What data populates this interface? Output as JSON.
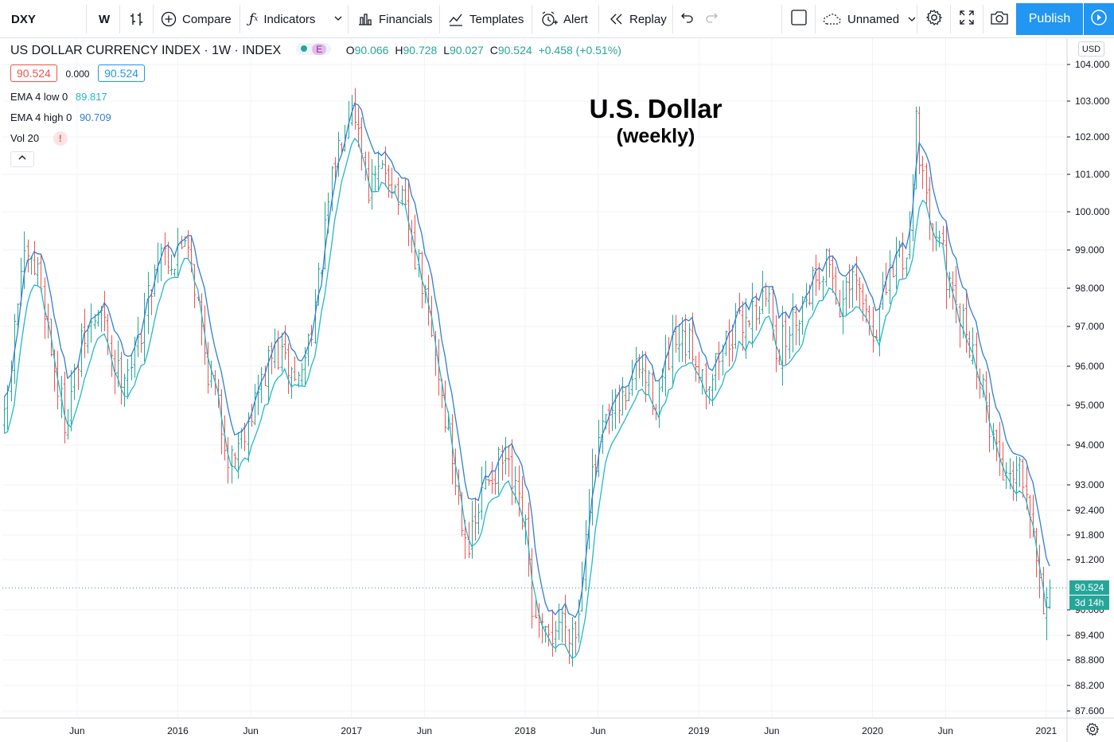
{
  "toolbar": {
    "symbol": "DXY",
    "interval": "W",
    "compare_label": "Compare",
    "indicators_label": "Indicators",
    "financials_label": "Financials",
    "templates_label": "Templates",
    "alert_label": "Alert",
    "replay_label": "Replay",
    "layout_name": "Unnamed",
    "publish_label": "Publish"
  },
  "legend": {
    "title": "US DOLLAR CURRENCY INDEX · 1W · INDEX",
    "badge": "E",
    "o_label": "O",
    "o_value": "90.066",
    "h_label": "H",
    "h_value": "90.728",
    "l_label": "L",
    "l_value": "90.027",
    "c_label": "C",
    "c_value": "90.524",
    "change": "+0.458 (+0.51%)",
    "bid": "90.524",
    "spread": "0.000",
    "ask": "90.524",
    "ema_low_label": "EMA 4 low 0",
    "ema_low_value": "89.817",
    "ema_high_label": "EMA 4 high 0",
    "ema_high_value": "90.709",
    "vol_label": "Vol 20",
    "vol_warning": "!"
  },
  "annotation": {
    "title": "U.S. Dollar",
    "subtitle": "(weekly)"
  },
  "price_axis": {
    "currency": "USD",
    "last_price": "90.524",
    "countdown": "3d 14h"
  },
  "colors": {
    "up": "#26a69a",
    "down": "#ef5350",
    "ema_high": "#2f7fd6",
    "ema_low": "#22b8c8",
    "accent": "#2196f3",
    "last_price": "#26a69a"
  },
  "chart_data": {
    "type": "bar",
    "ylim": [
      87.6,
      104.0
    ],
    "y_ticks": [
      "104.000",
      "103.000",
      "102.000",
      "101.000",
      "100.000",
      "99.000",
      "98.000",
      "97.000",
      "96.000",
      "95.000",
      "94.000",
      "93.000",
      "92.400",
      "91.800",
      "91.200",
      "90.000",
      "89.400",
      "88.800",
      "88.200",
      "87.600"
    ],
    "x_ticks": [
      {
        "label": "Jun",
        "date": 2015.42
      },
      {
        "label": "2016",
        "date": 2016.0
      },
      {
        "label": "Jun",
        "date": 2016.42
      },
      {
        "label": "2017",
        "date": 2017.0
      },
      {
        "label": "Jun",
        "date": 2017.42
      },
      {
        "label": "2018",
        "date": 2018.0
      },
      {
        "label": "Jun",
        "date": 2018.42
      },
      {
        "label": "2019",
        "date": 2019.0
      },
      {
        "label": "Jun",
        "date": 2019.42
      },
      {
        "label": "2020",
        "date": 2020.0
      },
      {
        "label": "Jun",
        "date": 2020.42
      },
      {
        "label": "2021",
        "date": 2021.0
      }
    ],
    "xlim": [
      2014.99,
      2021.12
    ],
    "close_path": [
      [
        2015.0,
        94.5
      ],
      [
        2015.1,
        98.6
      ],
      [
        2015.2,
        98.4
      ],
      [
        2015.3,
        95.6
      ],
      [
        2015.35,
        94.6
      ],
      [
        2015.45,
        96.6
      ],
      [
        2015.55,
        97.4
      ],
      [
        2015.65,
        95.8
      ],
      [
        2015.75,
        96.2
      ],
      [
        2015.9,
        99.2
      ],
      [
        2015.98,
        98.6
      ],
      [
        2016.05,
        99.6
      ],
      [
        2016.15,
        96.4
      ],
      [
        2016.3,
        93.6
      ],
      [
        2016.45,
        95.2
      ],
      [
        2016.55,
        96.4
      ],
      [
        2016.7,
        95.6
      ],
      [
        2016.8,
        97.8
      ],
      [
        2016.9,
        101.3
      ],
      [
        2017.0,
        103.2
      ],
      [
        2017.1,
        100.6
      ],
      [
        2017.2,
        101.2
      ],
      [
        2017.3,
        100.0
      ],
      [
        2017.4,
        98.2
      ],
      [
        2017.5,
        95.8
      ],
      [
        2017.6,
        93.0
      ],
      [
        2017.68,
        91.5
      ],
      [
        2017.78,
        93.2
      ],
      [
        2017.88,
        93.6
      ],
      [
        2018.0,
        91.8
      ],
      [
        2018.05,
        89.6
      ],
      [
        2018.12,
        89.2
      ],
      [
        2018.2,
        89.8
      ],
      [
        2018.3,
        89.5
      ],
      [
        2018.35,
        92.4
      ],
      [
        2018.45,
        94.4
      ],
      [
        2018.55,
        95.0
      ],
      [
        2018.65,
        96.0
      ],
      [
        2018.75,
        95.1
      ],
      [
        2018.85,
        96.4
      ],
      [
        2018.95,
        96.5
      ],
      [
        2019.05,
        95.6
      ],
      [
        2019.15,
        96.6
      ],
      [
        2019.3,
        97.4
      ],
      [
        2019.4,
        97.8
      ],
      [
        2019.45,
        96.3
      ],
      [
        2019.55,
        97.2
      ],
      [
        2019.65,
        98.2
      ],
      [
        2019.75,
        98.8
      ],
      [
        2019.8,
        97.5
      ],
      [
        2019.9,
        98.1
      ],
      [
        2020.0,
        96.8
      ],
      [
        2020.08,
        98.0
      ],
      [
        2020.15,
        99.0
      ],
      [
        2020.2,
        98.7
      ],
      [
        2020.25,
        102.6
      ],
      [
        2020.3,
        100.2
      ],
      [
        2020.38,
        99.6
      ],
      [
        2020.45,
        97.6
      ],
      [
        2020.55,
        96.8
      ],
      [
        2020.65,
        95.0
      ],
      [
        2020.75,
        93.3
      ],
      [
        2020.85,
        93.6
      ],
      [
        2020.92,
        92.4
      ],
      [
        2020.97,
        90.2
      ],
      [
        2021.02,
        90.5
      ]
    ]
  }
}
